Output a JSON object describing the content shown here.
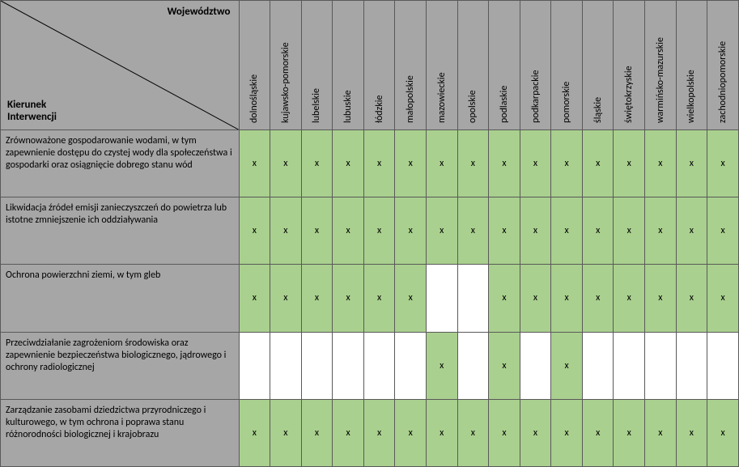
{
  "header": {
    "top_label": "Województwo",
    "bottom_label": "Kierunek\nInterwencji"
  },
  "colors": {
    "header_bg": "#a6a6a6",
    "marked_bg": "#a9d08e",
    "blank_bg": "#ffffff",
    "border": "#595959",
    "text": "#000000"
  },
  "font_sizes": {
    "header_label": 13,
    "col_head": 12,
    "row_head": 12,
    "cell": 12
  },
  "mark_glyph": "x",
  "columns": [
    "dolnośląskie",
    "kujawsko-pomorskie",
    "lubelskie",
    "lubuskie",
    "łódzkie",
    "małopolskie",
    "mazowieckie",
    "opolskie",
    "podlaskie",
    "podkarpackie",
    "pomorskie",
    "śląskie",
    "świętokrzyskie",
    "warmińsko-mazurskie",
    "wielkopolskie",
    "zachodniopomorskie"
  ],
  "rows": [
    {
      "label": "Zrównoważone gospodarowanie wodami, w tym zapewnienie dostępu do czystej wody dla społeczeństwa i gospodarki oraz osiągnięcie dobrego stanu wód",
      "marks": [
        true,
        true,
        true,
        true,
        true,
        true,
        true,
        true,
        true,
        true,
        true,
        true,
        true,
        true,
        true,
        true
      ]
    },
    {
      "label": "Likwidacja źródeł emisji zanieczyszczeń do powietrza lub istotne zmniejszenie ich oddziaływania",
      "marks": [
        true,
        true,
        true,
        true,
        true,
        true,
        true,
        true,
        true,
        true,
        true,
        true,
        true,
        true,
        true,
        true
      ]
    },
    {
      "label": "Ochrona powierzchni ziemi, w tym gleb",
      "marks": [
        true,
        true,
        true,
        true,
        true,
        true,
        false,
        false,
        true,
        true,
        true,
        true,
        true,
        true,
        true,
        true
      ]
    },
    {
      "label": "Przeciwdziałanie zagrożeniom środowiska oraz zapewnienie bezpieczeństwa biologicznego, jądrowego i ochrony radiologicznej",
      "marks": [
        false,
        false,
        false,
        false,
        false,
        false,
        true,
        false,
        true,
        false,
        true,
        false,
        false,
        false,
        false,
        false
      ]
    },
    {
      "label": "Zarządzanie zasobami dziedzictwa przyrodniczego i kulturowego, w tym ochrona i poprawa stanu różnorodności biologicznej i krajobrazu",
      "marks": [
        true,
        true,
        true,
        true,
        true,
        true,
        true,
        true,
        true,
        true,
        true,
        true,
        true,
        true,
        true,
        true
      ]
    }
  ]
}
